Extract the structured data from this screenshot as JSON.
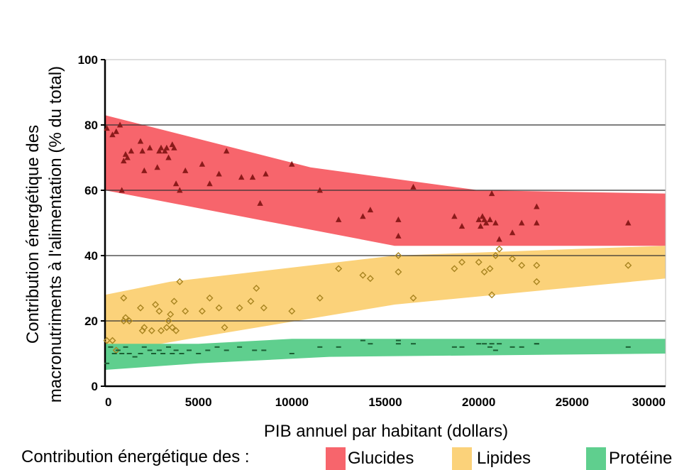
{
  "chart_data": {
    "type": "scatter",
    "ylabel_line1": "Contribution énergétique des",
    "ylabel_line2": "macronutriments à l'alimentation (% du total)",
    "xlabel": "PIB annuel par habitant (dollars)",
    "xlim": [
      0,
      30000
    ],
    "ylim": [
      0,
      100
    ],
    "xticks": [
      "0",
      "5000",
      "10000",
      "15000",
      "20000",
      "25000",
      "30000"
    ],
    "yticks": [
      "0",
      "20",
      "40",
      "60",
      "80",
      "100"
    ],
    "grid": "horizontal",
    "legend": {
      "title": "Contribution énergétique des :",
      "placement": "bottom",
      "items": [
        "Glucides",
        "Lipides",
        "Protéine"
      ]
    },
    "colors": {
      "glucides_band": "#f7656c",
      "glucides_marker": "#8b1a1a",
      "lipides_band": "#fbd27a",
      "lipides_marker": "#a88420",
      "proteine_band": "#5fcf8e",
      "proteine_marker": "#1b5e33"
    },
    "series": [
      {
        "name": "Glucides",
        "marker": "triangle",
        "band_upper": [
          [
            0,
            83
          ],
          [
            11000,
            67
          ],
          [
            20000,
            60
          ],
          [
            30000,
            59
          ]
        ],
        "band_lower": [
          [
            0,
            60
          ],
          [
            15500,
            43
          ],
          [
            30000,
            43
          ]
        ],
        "points": [
          [
            100,
            79
          ],
          [
            400,
            77
          ],
          [
            600,
            78
          ],
          [
            800,
            80
          ],
          [
            900,
            60
          ],
          [
            1000,
            69
          ],
          [
            1100,
            71
          ],
          [
            1200,
            70
          ],
          [
            1400,
            72
          ],
          [
            1900,
            75
          ],
          [
            2000,
            72
          ],
          [
            2100,
            66
          ],
          [
            2400,
            73
          ],
          [
            2800,
            67
          ],
          [
            2900,
            72
          ],
          [
            3000,
            73
          ],
          [
            3200,
            72
          ],
          [
            3300,
            73
          ],
          [
            3400,
            70
          ],
          [
            3600,
            74
          ],
          [
            3700,
            73
          ],
          [
            3800,
            62
          ],
          [
            4000,
            60
          ],
          [
            4300,
            66
          ],
          [
            5200,
            68
          ],
          [
            5600,
            62
          ],
          [
            6100,
            65
          ],
          [
            6500,
            72
          ],
          [
            7300,
            64
          ],
          [
            7900,
            64
          ],
          [
            8300,
            56
          ],
          [
            8600,
            65
          ],
          [
            10000,
            68
          ],
          [
            11500,
            60
          ],
          [
            12500,
            51
          ],
          [
            13800,
            52
          ],
          [
            14200,
            54
          ],
          [
            15700,
            51
          ],
          [
            15700,
            46
          ],
          [
            16500,
            61
          ],
          [
            18700,
            52
          ],
          [
            19100,
            49
          ],
          [
            20000,
            51
          ],
          [
            20100,
            49
          ],
          [
            20200,
            52
          ],
          [
            20300,
            51
          ],
          [
            20400,
            50
          ],
          [
            20600,
            51
          ],
          [
            20700,
            59
          ],
          [
            20900,
            50
          ],
          [
            21100,
            45
          ],
          [
            21800,
            47
          ],
          [
            22300,
            50
          ],
          [
            23100,
            55
          ],
          [
            23100,
            50
          ],
          [
            28000,
            50
          ]
        ]
      },
      {
        "name": "Lipides",
        "marker": "diamond",
        "band_upper": [
          [
            0,
            28
          ],
          [
            3500,
            32
          ],
          [
            15500,
            40
          ],
          [
            30000,
            43
          ]
        ],
        "band_lower": [
          [
            0,
            10
          ],
          [
            5000,
            15
          ],
          [
            15500,
            25
          ],
          [
            30000,
            33
          ]
        ],
        "points": [
          [
            100,
            14
          ],
          [
            400,
            14
          ],
          [
            600,
            11
          ],
          [
            1000,
            27
          ],
          [
            1000,
            20
          ],
          [
            1100,
            21
          ],
          [
            1300,
            20
          ],
          [
            1900,
            24
          ],
          [
            2000,
            17
          ],
          [
            2100,
            18
          ],
          [
            2500,
            17
          ],
          [
            2700,
            25
          ],
          [
            2900,
            23
          ],
          [
            3000,
            17
          ],
          [
            3300,
            18
          ],
          [
            3400,
            20
          ],
          [
            3500,
            22
          ],
          [
            3600,
            18
          ],
          [
            3700,
            26
          ],
          [
            3800,
            17
          ],
          [
            4000,
            32
          ],
          [
            4300,
            23
          ],
          [
            5200,
            23
          ],
          [
            5600,
            27
          ],
          [
            6100,
            24
          ],
          [
            6400,
            18
          ],
          [
            7200,
            24
          ],
          [
            7800,
            26
          ],
          [
            8100,
            30
          ],
          [
            8500,
            24
          ],
          [
            10000,
            23
          ],
          [
            11500,
            27
          ],
          [
            12500,
            36
          ],
          [
            13800,
            34
          ],
          [
            14200,
            33
          ],
          [
            15700,
            40
          ],
          [
            15700,
            35
          ],
          [
            16500,
            27
          ],
          [
            18700,
            36
          ],
          [
            19100,
            38
          ],
          [
            20000,
            38
          ],
          [
            20300,
            35
          ],
          [
            20600,
            36
          ],
          [
            20700,
            28
          ],
          [
            20900,
            40
          ],
          [
            21100,
            42
          ],
          [
            21800,
            39
          ],
          [
            22300,
            37
          ],
          [
            23100,
            37
          ],
          [
            23100,
            32
          ],
          [
            28000,
            37
          ]
        ]
      },
      {
        "name": "Protéine",
        "marker": "dash",
        "band_upper": [
          [
            0,
            13
          ],
          [
            5000,
            13
          ],
          [
            10000,
            14.5
          ],
          [
            30000,
            14.5
          ]
        ],
        "band_lower": [
          [
            0,
            5
          ],
          [
            5000,
            7
          ],
          [
            12000,
            9
          ],
          [
            30000,
            10
          ]
        ],
        "points": [
          [
            100,
            7
          ],
          [
            300,
            12
          ],
          [
            500,
            10
          ],
          [
            700,
            11
          ],
          [
            900,
            10
          ],
          [
            1100,
            12
          ],
          [
            1300,
            10
          ],
          [
            1600,
            9
          ],
          [
            1900,
            10
          ],
          [
            2100,
            12
          ],
          [
            2400,
            11
          ],
          [
            2600,
            10
          ],
          [
            2900,
            11
          ],
          [
            3100,
            10
          ],
          [
            3400,
            12
          ],
          [
            3600,
            10
          ],
          [
            3800,
            11
          ],
          [
            4100,
            10
          ],
          [
            4500,
            11
          ],
          [
            5000,
            10
          ],
          [
            5500,
            11
          ],
          [
            6000,
            12
          ],
          [
            6500,
            11
          ],
          [
            7200,
            12
          ],
          [
            8000,
            11
          ],
          [
            8500,
            11
          ],
          [
            10000,
            10
          ],
          [
            11500,
            12
          ],
          [
            12500,
            12
          ],
          [
            13800,
            14
          ],
          [
            14200,
            13
          ],
          [
            15700,
            13
          ],
          [
            15700,
            14
          ],
          [
            16500,
            13
          ],
          [
            18700,
            12
          ],
          [
            19100,
            12
          ],
          [
            20000,
            13
          ],
          [
            20300,
            13
          ],
          [
            20600,
            12
          ],
          [
            20700,
            13
          ],
          [
            20900,
            11
          ],
          [
            21100,
            13
          ],
          [
            21800,
            12
          ],
          [
            22300,
            12
          ],
          [
            23100,
            13
          ],
          [
            23100,
            13
          ],
          [
            28000,
            12
          ]
        ]
      }
    ]
  }
}
